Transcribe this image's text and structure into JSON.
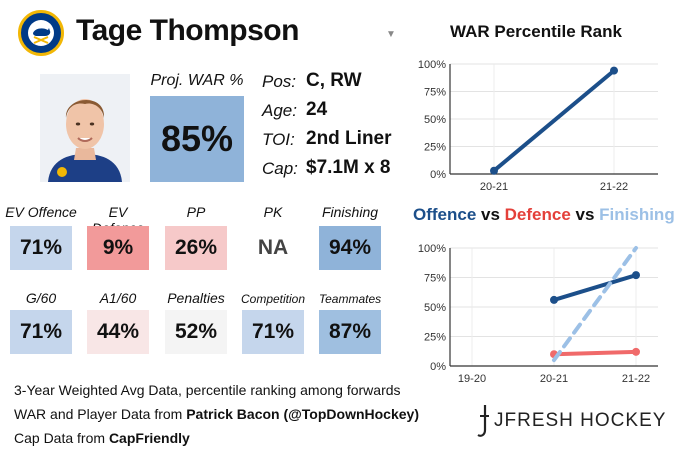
{
  "player": {
    "name": "Tage Thompson",
    "proj_war_label": "Proj. WAR %",
    "proj_war_value": "85%",
    "info": [
      {
        "label": "Pos:",
        "value": "C, RW"
      },
      {
        "label": "Age:",
        "value": "24"
      },
      {
        "label": "TOI:",
        "value": "2nd Liner"
      },
      {
        "label": "Cap:",
        "value": "$7.1M x 8"
      }
    ]
  },
  "stats_row1": [
    {
      "label": "EV Offence",
      "value": "71%",
      "color": "#c5d6ec"
    },
    {
      "label": "EV Defence",
      "value": "9%",
      "color": "#f29a9a"
    },
    {
      "label": "PP",
      "value": "26%",
      "color": "#f6c9c9"
    },
    {
      "label": "PK",
      "value": "NA",
      "color": "#ffffff"
    },
    {
      "label": "Finishing",
      "value": "94%",
      "color": "#8fb3d9"
    }
  ],
  "stats_row2": [
    {
      "label": "G/60",
      "value": "71%",
      "color": "#c5d6ec"
    },
    {
      "label": "A1/60",
      "value": "44%",
      "color": "#f8e6e6"
    },
    {
      "label": "Penalties",
      "value": "52%",
      "color": "#f4f4f4"
    },
    {
      "label": "Competition",
      "value": "71%",
      "color": "#c5d6ec"
    },
    {
      "label": "Teammates",
      "value": "87%",
      "color": "#9fbfe0"
    }
  ],
  "footer": {
    "line1": "3-Year Weighted Avg Data, percentile ranking among forwards",
    "line2_prefix": "WAR and Player Data from ",
    "line2_bold": "Patrick Bacon (@TopDownHockey)",
    "line3_prefix": "Cap Data from ",
    "line3_bold": "CapFriendly"
  },
  "brand": "JFRESH HOCKEY",
  "chart_data": [
    {
      "type": "line",
      "title": "WAR Percentile Rank",
      "categories": [
        "20-21",
        "21-22"
      ],
      "series": [
        {
          "values": [
            3,
            94
          ],
          "color": "#1c4f8a"
        }
      ],
      "ylim": [
        0,
        100
      ],
      "yticks": [
        "0%",
        "25%",
        "50%",
        "75%",
        "100%"
      ],
      "grid": true
    },
    {
      "type": "line",
      "title_parts": [
        {
          "text": "Offence",
          "color": "#1c4f8a"
        },
        {
          "text": " vs ",
          "color": "#111111"
        },
        {
          "text": "Defence",
          "color": "#e4403a"
        },
        {
          "text": " vs ",
          "color": "#111111"
        },
        {
          "text": "Finishing",
          "color": "#9cc0e6"
        }
      ],
      "categories": [
        "19-20",
        "20-21",
        "21-22"
      ],
      "series": [
        {
          "name": "Offence",
          "values": [
            null,
            56,
            77
          ],
          "color": "#1c4f8a",
          "style": "solid"
        },
        {
          "name": "Defence",
          "values": [
            null,
            10,
            12
          ],
          "color": "#f06a6a",
          "style": "solid"
        },
        {
          "name": "Finishing",
          "values": [
            null,
            5,
            100
          ],
          "color": "#9cc0e6",
          "style": "dashed"
        }
      ],
      "ylim": [
        0,
        100
      ],
      "yticks": [
        "0%",
        "25%",
        "50%",
        "75%",
        "100%"
      ],
      "grid": true
    }
  ]
}
